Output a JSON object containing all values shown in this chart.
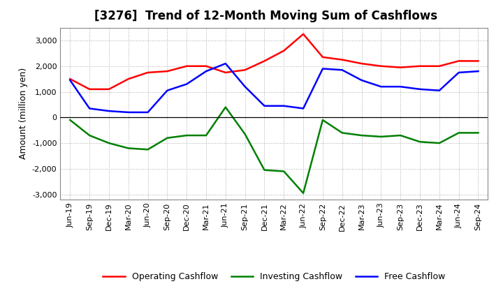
{
  "title": "[3276]  Trend of 12-Month Moving Sum of Cashflows",
  "ylabel": "Amount (million yen)",
  "x_labels": [
    "Jun-19",
    "Sep-19",
    "Dec-19",
    "Mar-20",
    "Jun-20",
    "Sep-20",
    "Dec-20",
    "Mar-21",
    "Jun-21",
    "Sep-21",
    "Dec-21",
    "Mar-22",
    "Jun-22",
    "Sep-22",
    "Dec-22",
    "Mar-23",
    "Jun-23",
    "Sep-23",
    "Dec-23",
    "Mar-24",
    "Jun-24",
    "Sep-24"
  ],
  "operating_cashflow": [
    1500,
    1100,
    1100,
    1500,
    1750,
    1800,
    2000,
    2000,
    1750,
    1850,
    2200,
    2600,
    3250,
    2350,
    2250,
    2100,
    2000,
    1950,
    2000,
    2000,
    2200,
    2200
  ],
  "investing_cashflow": [
    -100,
    -700,
    -1000,
    -1200,
    -1250,
    -800,
    -700,
    -700,
    400,
    -650,
    -2050,
    -2100,
    -2950,
    -100,
    -600,
    -700,
    -750,
    -700,
    -950,
    -1000,
    -600,
    -600
  ],
  "free_cashflow": [
    1450,
    350,
    250,
    200,
    200,
    1050,
    1300,
    1800,
    2100,
    1200,
    450,
    450,
    350,
    1900,
    1850,
    1450,
    1200,
    1200,
    1100,
    1050,
    1750,
    1800
  ],
  "operating_color": "#FF0000",
  "investing_color": "#008000",
  "free_color": "#0000FF",
  "ylim": [
    -3200,
    3500
  ],
  "yticks": [
    -3000,
    -2000,
    -1000,
    0,
    1000,
    2000,
    3000
  ],
  "bg_color": "#FFFFFF",
  "plot_bg_color": "#FFFFFF",
  "grid_color": "#AAAAAA",
  "title_fontsize": 12,
  "legend_fontsize": 9,
  "axis_fontsize": 8,
  "ylabel_fontsize": 9,
  "line_width": 1.8
}
